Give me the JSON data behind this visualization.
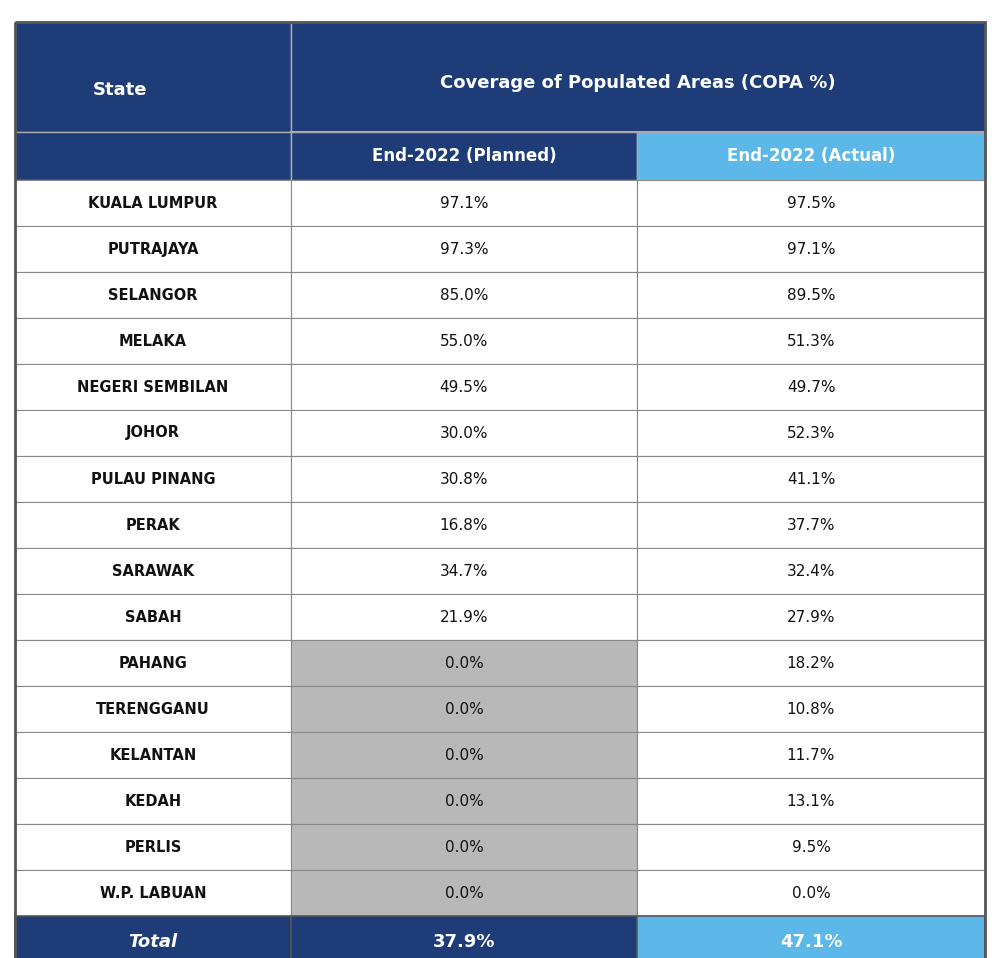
{
  "header_col": "State",
  "header_planned": "End-2022 (Planned)",
  "header_actual": "End-2022 (Actual)",
  "header_group": "Coverage of Populated Areas (COPA %)",
  "states": [
    "KUALA LUMPUR",
    "PUTRAJAYA",
    "SELANGOR",
    "MELAKA",
    "NEGERI SEMBILAN",
    "JOHOR",
    "PULAU PINANG",
    "PERAK",
    "SARAWAK",
    "SABAH",
    "PAHANG",
    "TERENGGANU",
    "KELANTAN",
    "KEDAH",
    "PERLIS",
    "W.P. LABUAN"
  ],
  "planned": [
    "97.1%",
    "97.3%",
    "85.0%",
    "55.0%",
    "49.5%",
    "30.0%",
    "30.8%",
    "16.8%",
    "34.7%",
    "21.9%",
    "0.0%",
    "0.0%",
    "0.0%",
    "0.0%",
    "0.0%",
    "0.0%"
  ],
  "actual": [
    "97.5%",
    "97.1%",
    "89.5%",
    "51.3%",
    "49.7%",
    "52.3%",
    "41.1%",
    "37.7%",
    "32.4%",
    "27.9%",
    "18.2%",
    "10.8%",
    "11.7%",
    "13.1%",
    "9.5%",
    "0.0%"
  ],
  "total_planned": "37.9%",
  "total_actual": "47.1%",
  "color_header_dark": "#1e3d78",
  "color_header_actual_bg": "#5bb8e8",
  "color_row_white": "#ffffff",
  "color_row_gray": "#b8b8b8",
  "color_total_dark": "#1e3d78",
  "color_total_actual": "#5bb8e8",
  "color_text_white": "#ffffff",
  "color_text_black": "#111111",
  "color_border": "#888888",
  "gray_rows": [
    10,
    11,
    12,
    13,
    14,
    15
  ],
  "fig_width": 10.0,
  "fig_height": 9.58
}
